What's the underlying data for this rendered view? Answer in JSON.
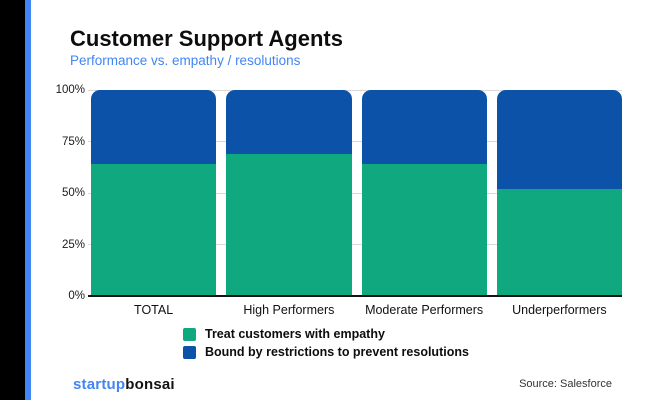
{
  "header": {
    "title": "Customer Support Agents",
    "subtitle": "Performance vs. empathy / resolutions"
  },
  "chart_data": {
    "type": "bar",
    "stacked": true,
    "title": "Customer Support Agents",
    "subtitle": "Performance vs. empathy / resolutions",
    "categories": [
      "TOTAL",
      "High Performers",
      "Moderate Performers",
      "Underperformers"
    ],
    "series": [
      {
        "name": "Treat customers with empathy",
        "color": "#10a87e",
        "values": [
          64,
          69,
          64,
          52
        ]
      },
      {
        "name": "Bound by restrictions to prevent resolutions",
        "color": "#0b52a8",
        "values": [
          36,
          31,
          36,
          48
        ]
      }
    ],
    "y_ticks": [
      {
        "label": "100%",
        "value": 100
      },
      {
        "label": "75%",
        "value": 75
      },
      {
        "label": "50%",
        "value": 50
      },
      {
        "label": "25%",
        "value": 25
      },
      {
        "label": "0%",
        "value": 0
      }
    ],
    "ylim": [
      0,
      100
    ],
    "grid": true,
    "legend_position": "bottom"
  },
  "footer": {
    "brand_first": "startup",
    "brand_second": "bonsai",
    "source": "Source: Salesforce"
  },
  "colors": {
    "accent_blue": "#4285f4",
    "bar_green": "#10a87e",
    "bar_blue": "#0b52a8",
    "gridline": "#d9d9d9"
  }
}
